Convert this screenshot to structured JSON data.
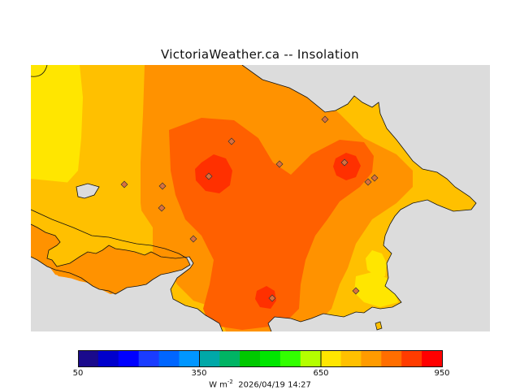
{
  "title": "VictoriaWeather.ca -- Insolation",
  "colors": {
    "background_gray": "#dcdcdc",
    "level_yellow": "#ffe600",
    "level_lightorange": "#ffc000",
    "level_orange": "#ff9200",
    "level_darkorange": "#ff6000",
    "level_red": "#ff3000",
    "station_marker": "#d87040"
  },
  "legend": {
    "min_label": "50",
    "mid_label_1": "350",
    "mid_label_2": "650",
    "max_label": "950",
    "unit_text": "W m",
    "unit_exponent": "-2",
    "timestamp": "2026/04/19 14:27",
    "colors": [
      "#1a0a8c",
      "#0000cc",
      "#0000ff",
      "#1a3cff",
      "#0066ff",
      "#0096ff",
      "#00a8a8",
      "#00b464",
      "#00c800",
      "#00e600",
      "#32ff00",
      "#b4ff00",
      "#ffe600",
      "#ffc000",
      "#ff9b00",
      "#ff6e00",
      "#ff3c00",
      "#ff0000"
    ]
  }
}
